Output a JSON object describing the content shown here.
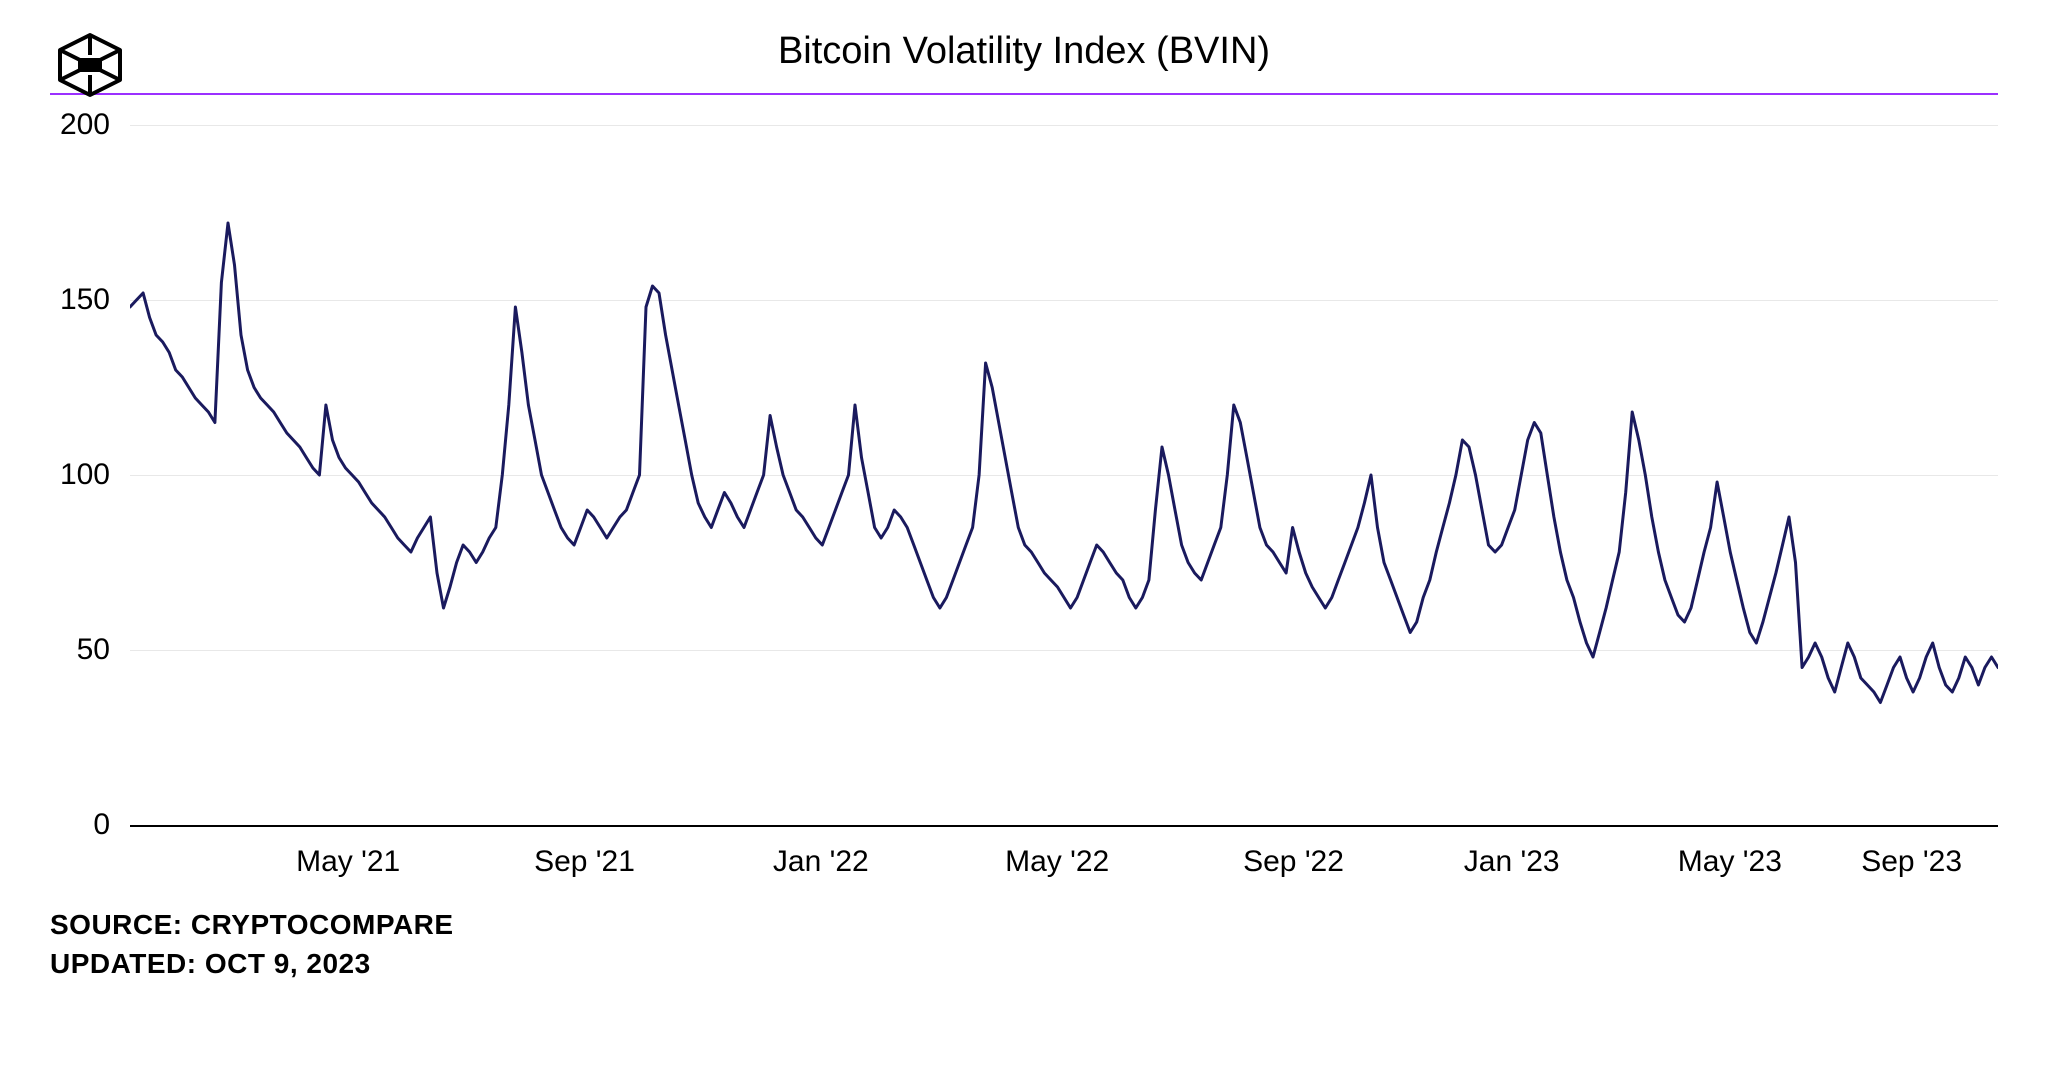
{
  "header": {
    "title": "Bitcoin Volatility Index (BVIN)"
  },
  "divider_color": "#9b30ff",
  "chart": {
    "type": "line",
    "line_color": "#1a1a5e",
    "line_width": 3,
    "background_color": "#ffffff",
    "grid_color": "#e8e8e8",
    "axis_color": "#000000",
    "ylim": [
      0,
      200
    ],
    "yticks": [
      0,
      50,
      100,
      150,
      200
    ],
    "x_labels": [
      "May '21",
      "Sep '21",
      "Jan '22",
      "May '22",
      "Sep '22",
      "Jan '23",
      "May '23",
      "Sep '23"
    ],
    "x_positions_pct": [
      12,
      25,
      38,
      51,
      64,
      76,
      88,
      98
    ],
    "title_fontsize": 38,
    "tick_fontsize": 30,
    "series": [
      148,
      150,
      152,
      145,
      140,
      138,
      135,
      130,
      128,
      125,
      122,
      120,
      118,
      115,
      155,
      172,
      160,
      140,
      130,
      125,
      122,
      120,
      118,
      115,
      112,
      110,
      108,
      105,
      102,
      100,
      120,
      110,
      105,
      102,
      100,
      98,
      95,
      92,
      90,
      88,
      85,
      82,
      80,
      78,
      82,
      85,
      88,
      72,
      62,
      68,
      75,
      80,
      78,
      75,
      78,
      82,
      85,
      100,
      120,
      148,
      135,
      120,
      110,
      100,
      95,
      90,
      85,
      82,
      80,
      85,
      90,
      88,
      85,
      82,
      85,
      88,
      90,
      95,
      100,
      148,
      154,
      152,
      140,
      130,
      120,
      110,
      100,
      92,
      88,
      85,
      90,
      95,
      92,
      88,
      85,
      90,
      95,
      100,
      117,
      108,
      100,
      95,
      90,
      88,
      85,
      82,
      80,
      85,
      90,
      95,
      100,
      120,
      105,
      95,
      85,
      82,
      85,
      90,
      88,
      85,
      80,
      75,
      70,
      65,
      62,
      65,
      70,
      75,
      80,
      85,
      100,
      132,
      125,
      115,
      105,
      95,
      85,
      80,
      78,
      75,
      72,
      70,
      68,
      65,
      62,
      65,
      70,
      75,
      80,
      78,
      75,
      72,
      70,
      65,
      62,
      65,
      70,
      90,
      108,
      100,
      90,
      80,
      75,
      72,
      70,
      75,
      80,
      85,
      100,
      120,
      115,
      105,
      95,
      85,
      80,
      78,
      75,
      72,
      85,
      78,
      72,
      68,
      65,
      62,
      65,
      70,
      75,
      80,
      85,
      92,
      100,
      85,
      75,
      70,
      65,
      60,
      55,
      58,
      65,
      70,
      78,
      85,
      92,
      100,
      110,
      108,
      100,
      90,
      80,
      78,
      80,
      85,
      90,
      100,
      110,
      115,
      112,
      100,
      88,
      78,
      70,
      65,
      58,
      52,
      48,
      55,
      62,
      70,
      78,
      95,
      118,
      110,
      100,
      88,
      78,
      70,
      65,
      60,
      58,
      62,
      70,
      78,
      85,
      98,
      88,
      78,
      70,
      62,
      55,
      52,
      58,
      65,
      72,
      80,
      88,
      75,
      45,
      48,
      52,
      48,
      42,
      38,
      45,
      52,
      48,
      42,
      40,
      38,
      35,
      40,
      45,
      48,
      42,
      38,
      42,
      48,
      52,
      45,
      40,
      38,
      42,
      48,
      45,
      40,
      45,
      48,
      45
    ]
  },
  "footer": {
    "source_label": "SOURCE:",
    "source_value": "CRYPTOCOMPARE",
    "updated_label": "UPDATED:",
    "updated_value": "OCT 9, 2023"
  }
}
